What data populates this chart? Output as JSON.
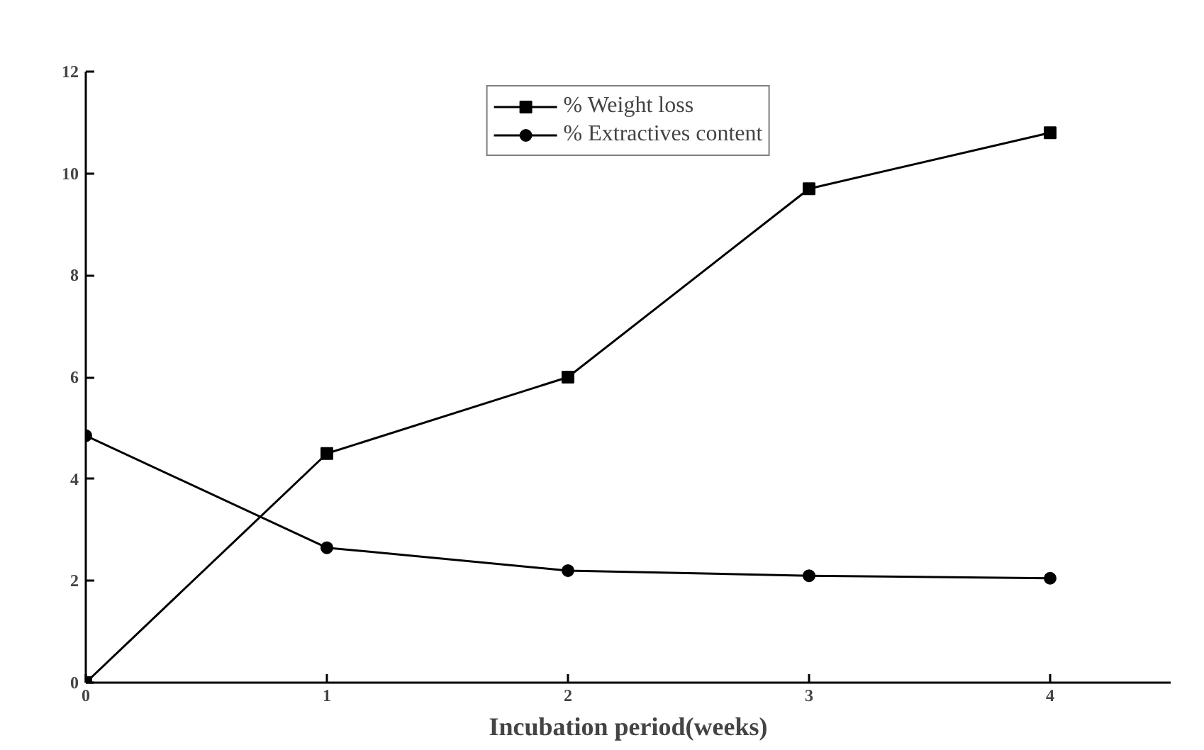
{
  "chart_data": {
    "type": "line",
    "xlabel": "Incubation period(weeks)",
    "x": [
      0,
      1,
      2,
      3,
      4
    ],
    "series": [
      {
        "name": "% Weight loss",
        "color": "#000000",
        "marker": "square",
        "values": [
          0,
          4.5,
          6.0,
          9.7,
          10.8
        ]
      },
      {
        "name": "% Extractives content",
        "color": "#000000",
        "marker": "circle",
        "values": [
          4.85,
          2.65,
          2.2,
          2.1,
          2.05
        ]
      }
    ],
    "xlim": [
      0,
      4.5
    ],
    "xticks": [
      0,
      1,
      2,
      3,
      4
    ],
    "ylim": [
      0,
      12
    ],
    "yticks": [
      0,
      2,
      4,
      6,
      8,
      10,
      12
    ],
    "grid": false,
    "legend": "top",
    "line_style": "solid"
  }
}
